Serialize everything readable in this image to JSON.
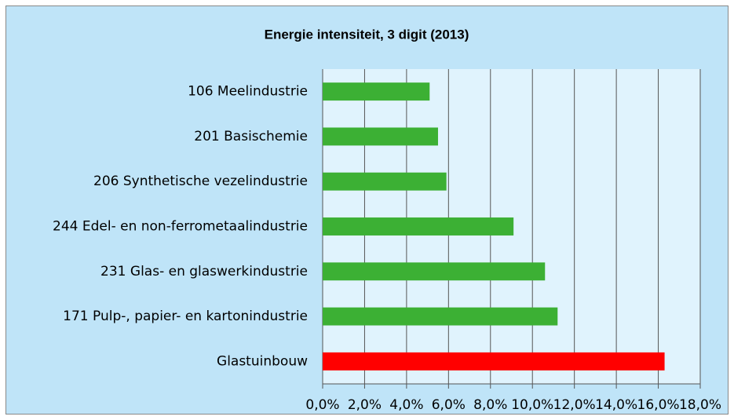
{
  "chart_data": {
    "type": "bar",
    "orientation": "horizontal",
    "title": "Energie intensiteit, 3 digit (2013)",
    "categories": [
      "106 Meelindustrie",
      "201 Basischemie",
      "206 Synthetische vezelindustrie",
      "244 Edel- en non-ferrometaalindustrie",
      "231 Glas- en glaswerkindustrie",
      "171 Pulp-, papier- en kartonindustrie",
      "Glastuinbouw"
    ],
    "values": [
      5.1,
      5.5,
      5.9,
      9.1,
      10.6,
      11.2,
      16.3
    ],
    "colors": [
      "#3cb034",
      "#3cb034",
      "#3cb034",
      "#3cb034",
      "#3cb034",
      "#3cb034",
      "#ff0000"
    ],
    "xlim": [
      0,
      18
    ],
    "xticks": [
      {
        "value": 0,
        "label": "0,0%"
      },
      {
        "value": 2,
        "label": "2,0%"
      },
      {
        "value": 4,
        "label": "4,0%"
      },
      {
        "value": 6,
        "label": "6,0%"
      },
      {
        "value": 8,
        "label": "8,0%"
      },
      {
        "value": 10,
        "label": "10,0%"
      },
      {
        "value": 12,
        "label": "12,0%"
      },
      {
        "value": 14,
        "label": "14,0%"
      },
      {
        "value": 16,
        "label": "16,0%"
      },
      {
        "value": 18,
        "label": "18,0%"
      }
    ],
    "grid": true
  }
}
